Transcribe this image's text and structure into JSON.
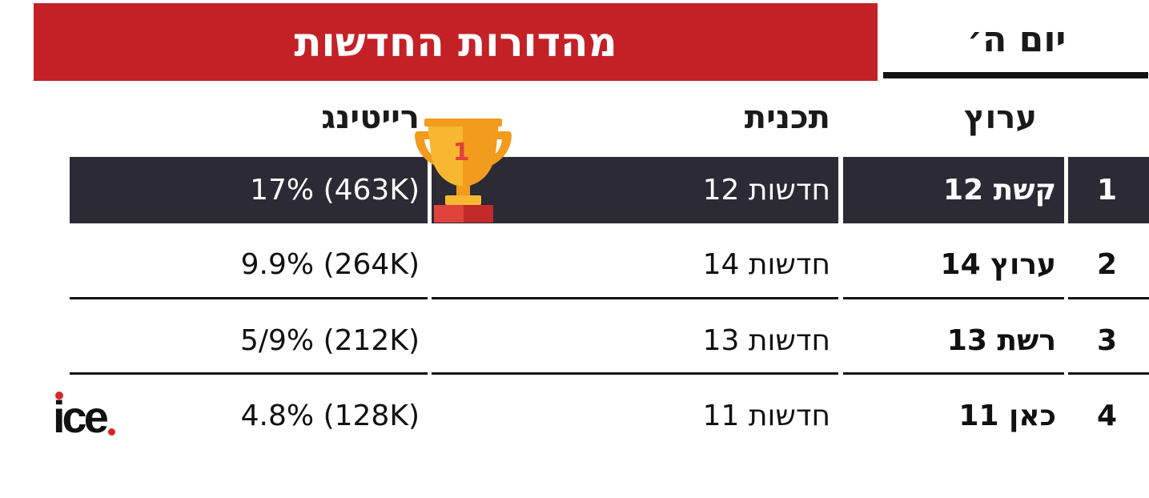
{
  "banner_title": "מהדורות החדשות",
  "day_label": "יום ה׳",
  "headers": {
    "channel": "ערוץ",
    "program": "תכנית",
    "rating": "רייטינג"
  },
  "rows": [
    {
      "rank": "1",
      "channel": "קשת 12",
      "program": "חדשות 12",
      "rating": "(463K) 17%"
    },
    {
      "rank": "2",
      "channel": "ערוץ 14",
      "program": "חדשות 14",
      "rating": "(264K) 9.9%"
    },
    {
      "rank": "3",
      "channel": "רשת 13",
      "program": "חדשות 13",
      "rating": "(212K) 5/9%"
    },
    {
      "rank": "4",
      "channel": "כאן 11",
      "program": "חדשות 11",
      "rating": "(128K) 4.8%"
    }
  ],
  "trophy_number": "1",
  "logo_text": "ice",
  "colors": {
    "banner_red": "#c42127",
    "highlight_row": "#2b2a35",
    "trophy_gold": "#f7b731",
    "logo_dot": "#d9242b"
  },
  "icons": {
    "trophy": "trophy-icon",
    "logo": "ice-logo"
  }
}
